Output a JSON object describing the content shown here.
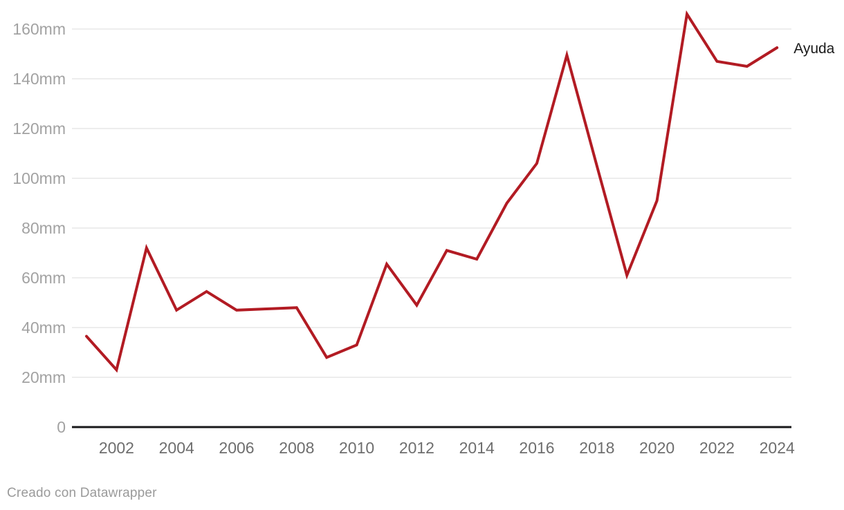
{
  "chart": {
    "series_label": "Ayuda",
    "footer": {
      "prefix": "Creado con ",
      "link_text": "Datawrapper"
    },
    "colors": {
      "line": "#b21b23",
      "grid": "#e7e7e7",
      "axis_baseline": "#18181a",
      "y_tick_label": "#a2a2a2",
      "x_tick_label": "#6e6e6e",
      "series_label": "#1a1a1a",
      "footer_text": "#9a9a9a"
    }
  },
  "chart_data": {
    "type": "line",
    "title": "",
    "xlabel": "",
    "ylabel": "",
    "unit": "mm",
    "grid": true,
    "legend_position": "end-of-line",
    "x_range": [
      2001,
      2024
    ],
    "ylim": [
      0,
      170
    ],
    "x": [
      2001,
      2002,
      2003,
      2004,
      2005,
      2006,
      2007,
      2008,
      2009,
      2010,
      2011,
      2012,
      2013,
      2014,
      2015,
      2016,
      2017,
      2018,
      2019,
      2020,
      2021,
      2022,
      2023,
      2024
    ],
    "series": [
      {
        "name": "Ayuda",
        "values": [
          36.5,
          23,
          72,
          47,
          54.5,
          47,
          47.5,
          48,
          28,
          33,
          65.5,
          49,
          71,
          67.5,
          90,
          106,
          149.5,
          105,
          61,
          91,
          166,
          147,
          145,
          152.5
        ]
      }
    ],
    "y_ticks": [
      {
        "value": 0,
        "label": "0"
      },
      {
        "value": 20,
        "label": "20mm"
      },
      {
        "value": 40,
        "label": "40mm"
      },
      {
        "value": 60,
        "label": "60mm"
      },
      {
        "value": 80,
        "label": "80mm"
      },
      {
        "value": 100,
        "label": "100mm"
      },
      {
        "value": 120,
        "label": "120mm"
      },
      {
        "value": 140,
        "label": "140mm"
      },
      {
        "value": 160,
        "label": "160mm"
      }
    ],
    "x_ticks": [
      {
        "value": 2002,
        "label": "2002"
      },
      {
        "value": 2004,
        "label": "2004"
      },
      {
        "value": 2006,
        "label": "2006"
      },
      {
        "value": 2008,
        "label": "2008"
      },
      {
        "value": 2010,
        "label": "2010"
      },
      {
        "value": 2012,
        "label": "2012"
      },
      {
        "value": 2014,
        "label": "2014"
      },
      {
        "value": 2016,
        "label": "2016"
      },
      {
        "value": 2018,
        "label": "2018"
      },
      {
        "value": 2020,
        "label": "2020"
      },
      {
        "value": 2022,
        "label": "2022"
      },
      {
        "value": 2024,
        "label": "2024"
      }
    ]
  }
}
